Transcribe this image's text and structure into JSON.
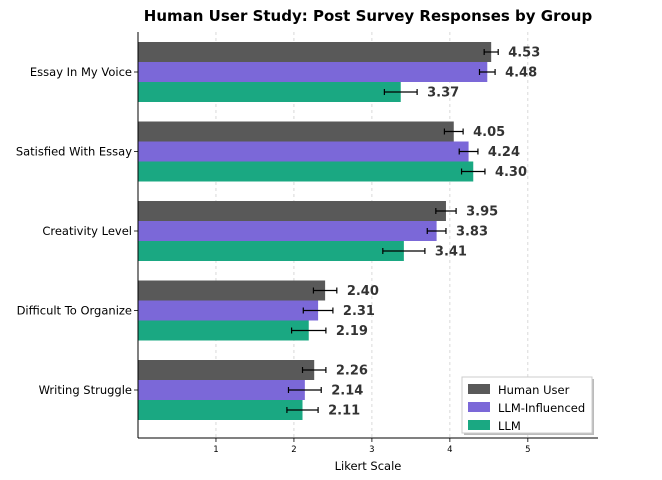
{
  "chart_data": {
    "type": "bar",
    "orientation": "horizontal",
    "title": "Human User Study: Post Survey Responses by Group",
    "xlabel": "Likert Scale",
    "ylabel": "",
    "xlim": [
      0,
      5.9
    ],
    "xticks": [
      "1",
      "2",
      "3",
      "4",
      "5"
    ],
    "grid": "vertical dashed",
    "legend_position": "bottom-right",
    "categories": [
      "Essay In My Voice",
      "Satisfied With Essay",
      "Creativity Level",
      "Difficult To Organize",
      "Writing Struggle"
    ],
    "series": [
      {
        "name": "Human User",
        "color": "#595959",
        "values": [
          4.53,
          4.05,
          3.95,
          2.4,
          2.26
        ],
        "labels": [
          "4.53",
          "4.05",
          "3.95",
          "2.40",
          "2.26"
        ],
        "errors": [
          0.09,
          0.12,
          0.13,
          0.15,
          0.15
        ]
      },
      {
        "name": "LLM-Influenced",
        "color": "#7b68d8",
        "values": [
          4.48,
          4.24,
          3.83,
          2.31,
          2.14
        ],
        "labels": [
          "4.48",
          "4.24",
          "3.83",
          "2.31",
          "2.14"
        ],
        "errors": [
          0.1,
          0.12,
          0.12,
          0.19,
          0.21
        ]
      },
      {
        "name": "LLM",
        "color": "#1aa882",
        "values": [
          3.37,
          4.3,
          3.41,
          2.19,
          2.11
        ],
        "labels": [
          "3.37",
          "4.30",
          "3.41",
          "2.19",
          "2.11"
        ],
        "errors": [
          0.21,
          0.15,
          0.27,
          0.22,
          0.2
        ]
      }
    ]
  }
}
